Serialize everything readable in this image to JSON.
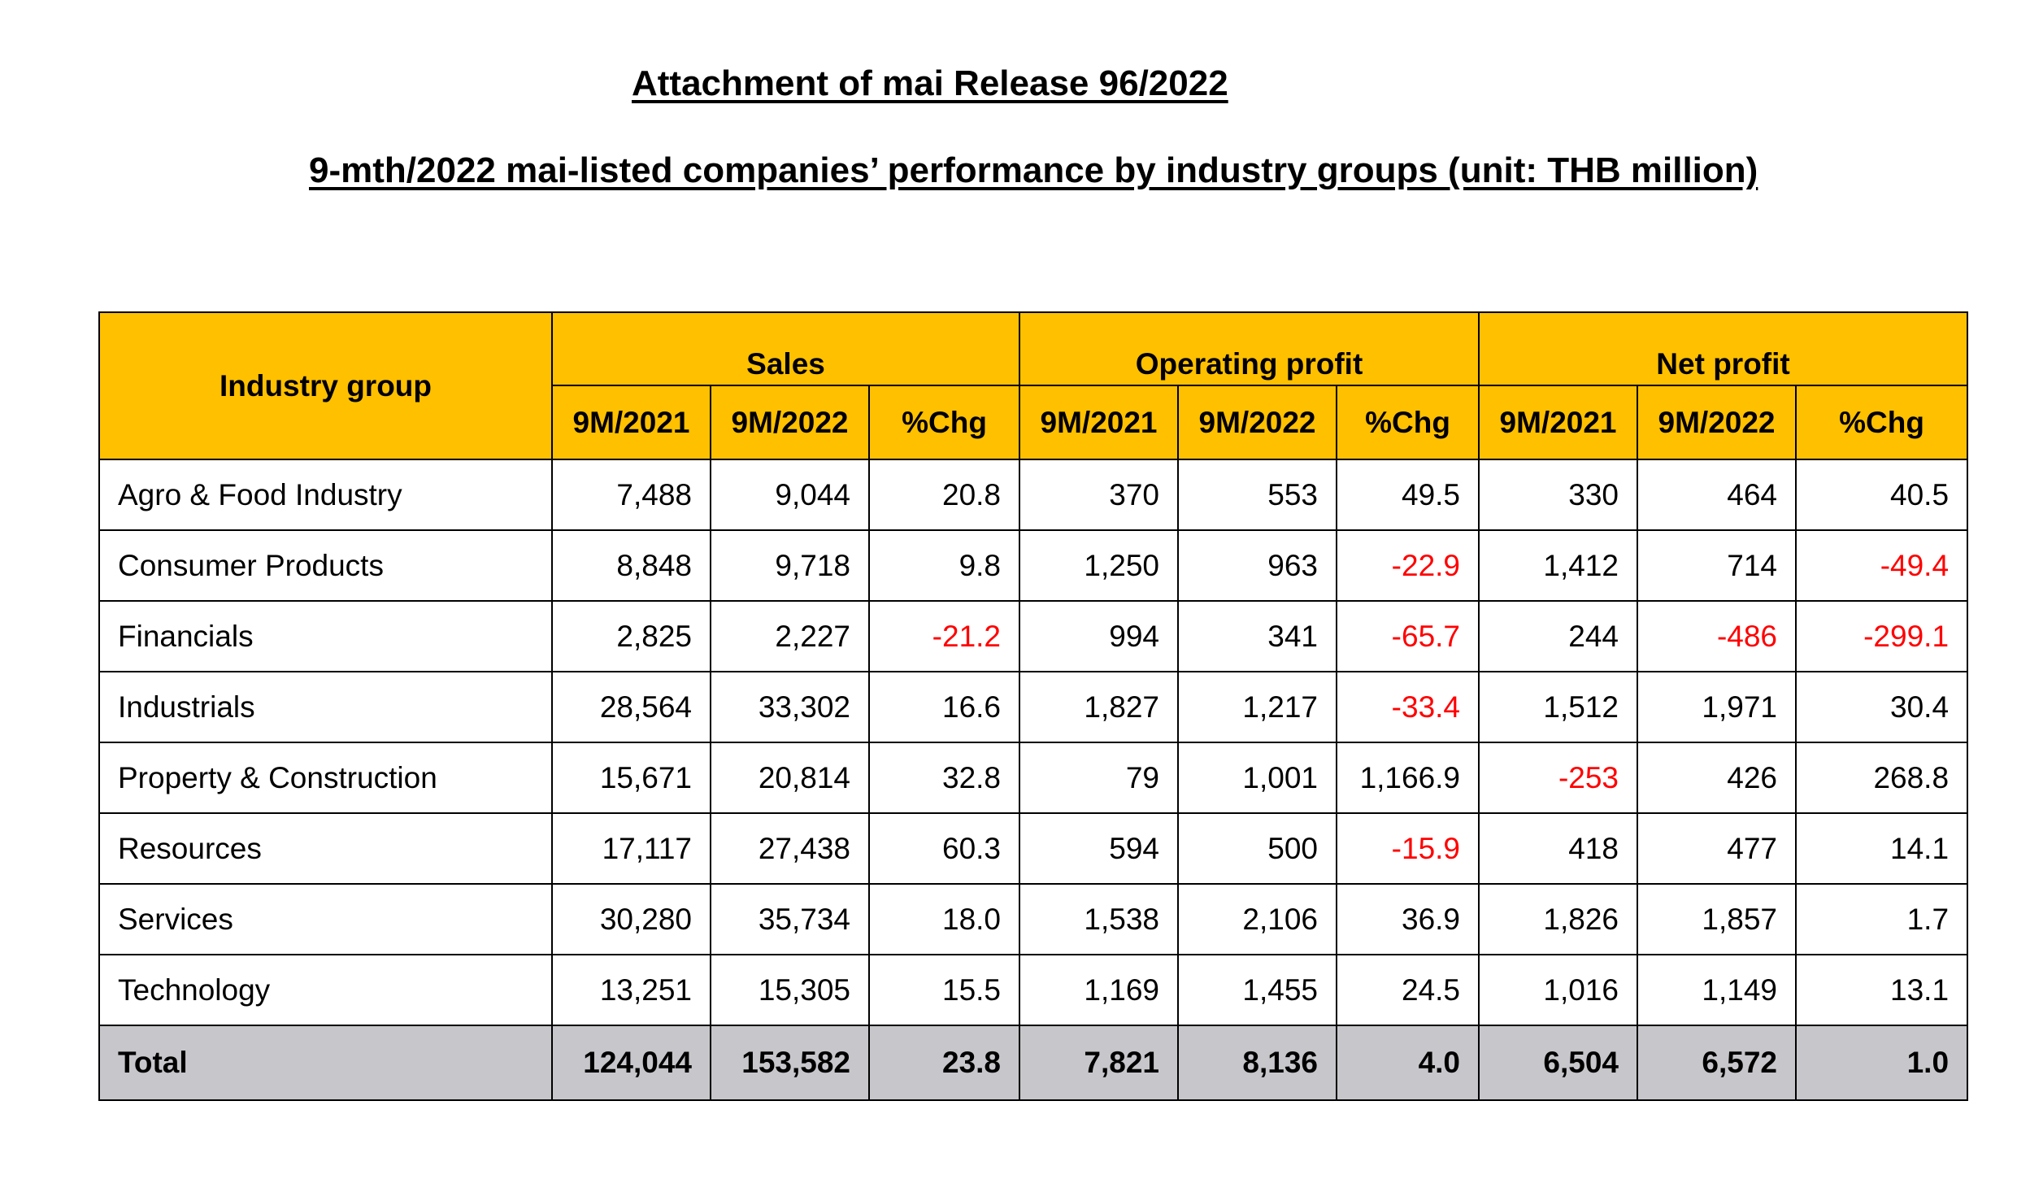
{
  "title": "Attachment of mai Release 96/2022",
  "subtitle": "9-mth/2022 mai-listed companies’ performance by industry groups (unit: THB million)",
  "colors": {
    "header_bg": "#ffc000",
    "total_bg": "#c7c6ca",
    "negative": "#ff0000"
  },
  "table": {
    "corner": "Industry group",
    "groups": [
      "Sales",
      "Operating profit",
      "Net profit"
    ],
    "subheaders": [
      "9M/2021",
      "9M/2022",
      "%Chg",
      "9M/2021",
      "9M/2022",
      "%Chg",
      "9M/2021",
      "9M/2022",
      "%Chg"
    ],
    "rows": [
      {
        "name": "Agro & Food Industry",
        "cells": [
          "7,488",
          "9,044",
          "20.8",
          "370",
          "553",
          "49.5",
          "330",
          "464",
          "40.5"
        ]
      },
      {
        "name": "Consumer Products",
        "cells": [
          "8,848",
          "9,718",
          "9.8",
          "1,250",
          "963",
          "-22.9",
          "1,412",
          "714",
          "-49.4"
        ]
      },
      {
        "name": "Financials",
        "cells": [
          "2,825",
          "2,227",
          "-21.2",
          "994",
          "341",
          "-65.7",
          "244",
          "-486",
          "-299.1"
        ]
      },
      {
        "name": "Industrials",
        "cells": [
          "28,564",
          "33,302",
          "16.6",
          "1,827",
          "1,217",
          "-33.4",
          "1,512",
          "1,971",
          "30.4"
        ]
      },
      {
        "name": "Property & Construction",
        "cells": [
          "15,671",
          "20,814",
          "32.8",
          "79",
          "1,001",
          "1,166.9",
          "-253",
          "426",
          "268.8"
        ]
      },
      {
        "name": "Resources",
        "cells": [
          "17,117",
          "27,438",
          "60.3",
          "594",
          "500",
          "-15.9",
          "418",
          "477",
          "14.1"
        ]
      },
      {
        "name": "Services",
        "cells": [
          "30,280",
          "35,734",
          "18.0",
          "1,538",
          "2,106",
          "36.9",
          "1,826",
          "1,857",
          "1.7"
        ]
      },
      {
        "name": "Technology",
        "cells": [
          "13,251",
          "15,305",
          "15.5",
          "1,169",
          "1,455",
          "24.5",
          "1,016",
          "1,149",
          "13.1"
        ]
      }
    ],
    "total": {
      "name": "Total",
      "cells": [
        "124,044",
        "153,582",
        "23.8",
        "7,821",
        "8,136",
        "4.0",
        "6,504",
        "6,572",
        "1.0"
      ]
    }
  }
}
